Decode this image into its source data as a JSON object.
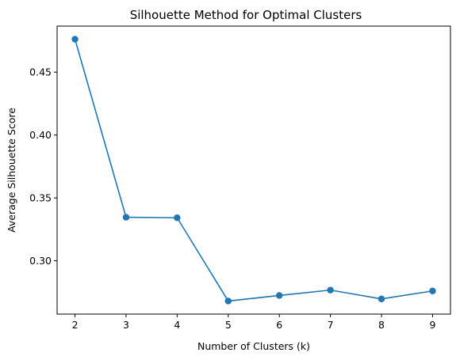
{
  "chart_data": {
    "type": "line",
    "title": "Silhouette Method for Optimal Clusters",
    "xlabel": "Number of Clusters (k)",
    "ylabel": "Average Silhouette Score",
    "x": [
      2,
      3,
      4,
      5,
      6,
      7,
      8,
      9
    ],
    "series": [
      {
        "values": [
          0.4762,
          0.3346,
          0.3342,
          0.268,
          0.2724,
          0.2767,
          0.2697,
          0.276
        ],
        "color": "#1f77b4",
        "marker": "circle"
      }
    ],
    "xticks": [
      2,
      3,
      4,
      5,
      6,
      7,
      8,
      9
    ],
    "yticks": [
      0.3,
      0.35,
      0.4,
      0.45
    ],
    "xlim": [
      1.65,
      9.35
    ],
    "ylim": [
      0.2576,
      0.4866
    ],
    "grid": false,
    "legend": "none"
  }
}
